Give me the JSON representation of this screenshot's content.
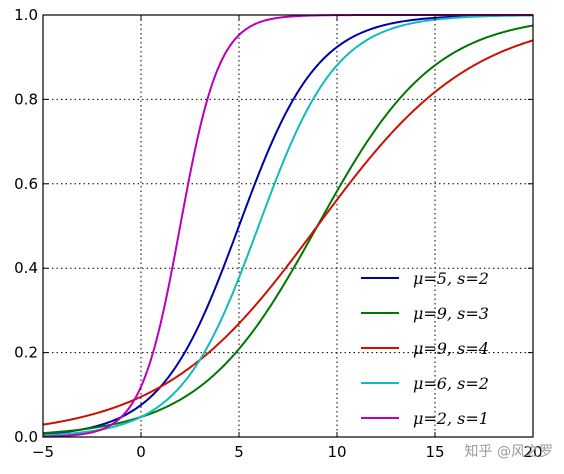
{
  "chart_data": {
    "type": "line",
    "title": "",
    "xlabel": "",
    "ylabel": "",
    "xlim": [
      -5,
      20
    ],
    "ylim": [
      0,
      1
    ],
    "x_ticks": [
      -5,
      0,
      5,
      10,
      15,
      20
    ],
    "x_tick_labels": [
      "−5",
      "0",
      "5",
      "10",
      "15",
      "20"
    ],
    "y_ticks": [
      0,
      0.2,
      0.4,
      0.6,
      0.8,
      1.0
    ],
    "y_tick_labels": [
      "0.0",
      "0.2",
      "0.4",
      "0.6",
      "0.8",
      "1.0"
    ],
    "grid": true,
    "legend_position": "lower-right",
    "series": [
      {
        "name": "μ=5, s=2",
        "mu": 5,
        "s": 2,
        "color": "#0000aa"
      },
      {
        "name": "μ=9, s=3",
        "mu": 9,
        "s": 3,
        "color": "#007700"
      },
      {
        "name": "μ=9, s=4",
        "mu": 9,
        "s": 4,
        "color": "#cc1100"
      },
      {
        "name": "μ=6, s=2",
        "mu": 6,
        "s": 2,
        "color": "#11bbbb"
      },
      {
        "name": "μ=2, s=1",
        "mu": 2,
        "s": 1,
        "color": "#bb00bb"
      }
    ]
  },
  "watermark": "知乎 @风之罗"
}
